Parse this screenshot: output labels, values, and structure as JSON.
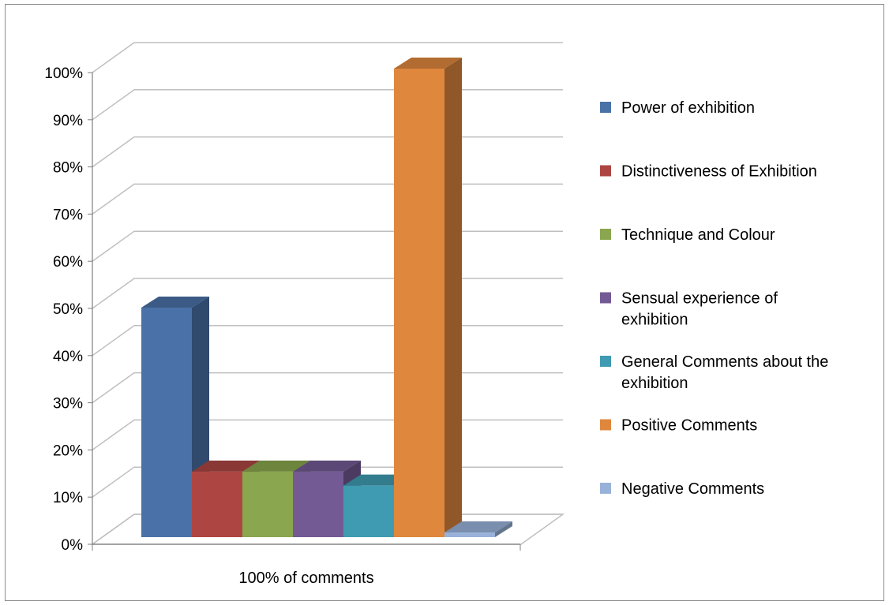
{
  "chart_data": {
    "type": "bar",
    "categories": [
      "100% of comments"
    ],
    "series": [
      {
        "name": "Power of exhibition",
        "values": [
          0.49
        ],
        "color": "#4a72a8"
      },
      {
        "name": "Distinctiveness of Exhibition",
        "values": [
          0.14
        ],
        "color": "#ad4642"
      },
      {
        "name": "Technique and Colour",
        "values": [
          0.14
        ],
        "color": "#8aa64e"
      },
      {
        "name": "Sensual experience of exhibition",
        "values": [
          0.14
        ],
        "color": "#735a94"
      },
      {
        "name": "General Comments  about the exhibition",
        "values": [
          0.11
        ],
        "color": "#3f9bb1"
      },
      {
        "name": "Positive Comments",
        "values": [
          1.0
        ],
        "color": "#de873d"
      },
      {
        "name": "Negative Comments",
        "values": [
          0.01
        ],
        "color": "#98b2d9"
      }
    ],
    "ylim": [
      0,
      1.0
    ],
    "y_ticks": [
      "0%",
      "10%",
      "20%",
      "30%",
      "40%",
      "50%",
      "60%",
      "70%",
      "80%",
      "90%",
      "100%"
    ],
    "grid": true,
    "three_d": true,
    "legend_position": "right",
    "title": "",
    "xlabel": "",
    "ylabel": ""
  }
}
